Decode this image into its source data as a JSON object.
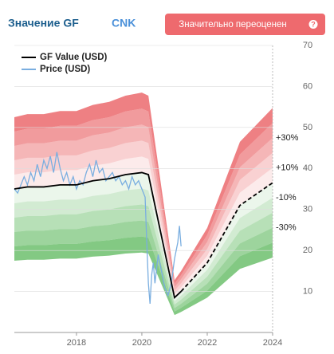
{
  "header": {
    "title": "Значение GF",
    "ticker": "CNK",
    "badge": "Значительно переоценен",
    "badge_icon": "?"
  },
  "chart_data": {
    "type": "line",
    "xlim": [
      2016.1,
      2024
    ],
    "xticks": [
      2018,
      2020,
      2022,
      2024
    ],
    "ylim": [
      0,
      70
    ],
    "yticks": [
      10,
      20,
      30,
      40,
      50,
      60,
      70
    ],
    "grid": true,
    "estimate_start": 2021.2,
    "band_range": [
      -50,
      50
    ],
    "band_step": 10,
    "band_colors": {
      "above": "#e8585c",
      "below": "#5cb85c"
    },
    "band_labels": [
      {
        "value": 30,
        "label": "+30%"
      },
      {
        "value": 10,
        "label": "+10%"
      },
      {
        "value": -10,
        "label": "-10%"
      },
      {
        "value": -30,
        "label": "-30%"
      }
    ],
    "series": [
      {
        "name": "GF Value (USD)",
        "color": "#000000",
        "x": [
          2016.1,
          2016.5,
          2017.0,
          2017.5,
          2018.0,
          2018.5,
          2019.0,
          2019.5,
          2020.0,
          2020.2,
          2021.0,
          2021.2,
          2022.0,
          2023.0,
          2024.0
        ],
        "values": [
          35,
          35.5,
          35.5,
          36,
          36,
          37,
          37.5,
          38.5,
          39,
          38.5,
          8.5,
          10,
          17,
          31,
          36.5
        ]
      },
      {
        "name": "Price (USD)",
        "color": "#7aaee0",
        "x": [
          2016.1,
          2016.2,
          2016.3,
          2016.4,
          2016.5,
          2016.6,
          2016.7,
          2016.8,
          2016.9,
          2017.0,
          2017.1,
          2017.2,
          2017.3,
          2017.4,
          2017.5,
          2017.6,
          2017.7,
          2017.8,
          2017.9,
          2018.0,
          2018.1,
          2018.2,
          2018.3,
          2018.4,
          2018.5,
          2018.6,
          2018.7,
          2018.8,
          2018.9,
          2019.0,
          2019.1,
          2019.2,
          2019.3,
          2019.4,
          2019.5,
          2019.6,
          2019.7,
          2019.8,
          2019.9,
          2020.0,
          2020.1,
          2020.15,
          2020.2,
          2020.25,
          2020.3,
          2020.35,
          2020.4,
          2020.5,
          2020.6,
          2020.7,
          2020.8,
          2020.9,
          2021.0,
          2021.1,
          2021.15,
          2021.2
        ],
        "values": [
          35,
          34,
          36,
          38,
          36,
          39,
          37,
          41,
          38,
          42,
          40,
          43,
          39,
          44,
          40,
          37,
          39,
          36,
          38,
          35,
          37,
          36,
          39,
          41,
          38,
          42,
          39,
          40,
          37,
          38,
          39,
          37,
          38,
          36,
          37,
          35,
          38,
          36,
          37,
          35,
          33,
          22,
          12,
          7,
          14,
          17,
          12,
          19,
          15,
          11,
          9,
          12,
          18,
          22,
          26,
          21
        ]
      }
    ]
  }
}
